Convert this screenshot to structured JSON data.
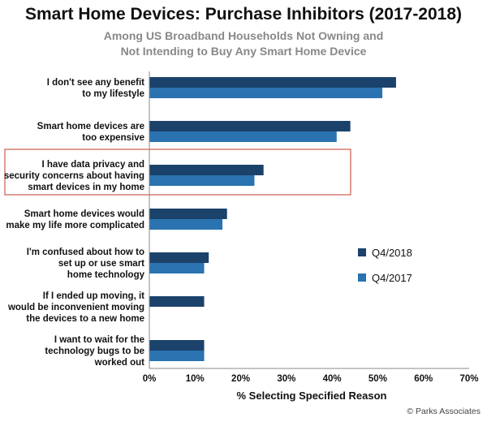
{
  "chart_data": {
    "type": "bar",
    "orientation": "horizontal",
    "title": "Smart Home Devices: Purchase Inhibitors (2017-2018)",
    "subtitle": [
      "Among US Broadband Households Not Owning and",
      "Not Intending to Buy Any Smart Home Device"
    ],
    "xlabel": "% Selecting Specified Reason",
    "xlim": [
      0,
      70
    ],
    "xticks": [
      "0%",
      "10%",
      "20%",
      "30%",
      "40%",
      "50%",
      "60%",
      "70%"
    ],
    "categories": [
      [
        "I don't see any benefit",
        "to my lifestyle"
      ],
      [
        "Smart home devices are",
        "too expensive"
      ],
      [
        "I have data privacy and",
        "security concerns about having",
        "smart devices in my home"
      ],
      [
        "Smart home devices would",
        "make my life more complicated"
      ],
      [
        "I'm confused about how to",
        "set up or use smart",
        "home technology"
      ],
      [
        "If I ended up moving, it",
        "would be inconvenient moving",
        "the devices to a new home"
      ],
      [
        "I want to wait for the",
        "technology bugs to be",
        "worked out"
      ]
    ],
    "series": [
      {
        "name": "Q4/2018",
        "color": "#1b426b",
        "values": [
          54,
          44,
          25,
          17,
          13,
          12,
          12
        ]
      },
      {
        "name": "Q4/2017",
        "color": "#2a73b0",
        "values": [
          51,
          41,
          23,
          16,
          12,
          null,
          12
        ]
      }
    ],
    "highlighted_category_index": 2,
    "highlight_color": "#c0392b",
    "legend_position": "right",
    "grid": false
  },
  "source": "© Parks Associates"
}
